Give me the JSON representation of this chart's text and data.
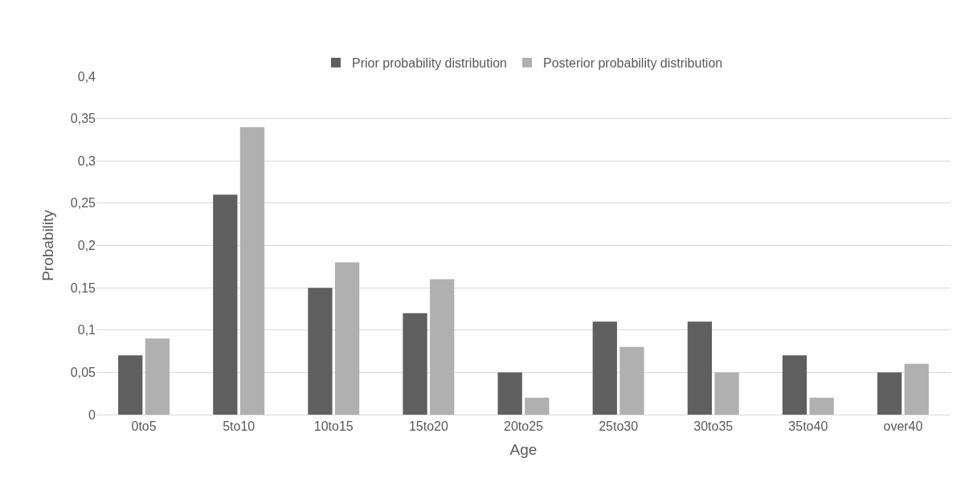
{
  "chart_data": {
    "type": "bar",
    "xlabel": "Age",
    "ylabel": "Probability",
    "categories": [
      "0to5",
      "5to10",
      "10to15",
      "15to20",
      "20to25",
      "25to30",
      "30to35",
      "35to40",
      "over40"
    ],
    "series": [
      {
        "name": "Prior probability distribution",
        "color": "#5f5f5f",
        "values": [
          0.07,
          0.26,
          0.15,
          0.12,
          0.05,
          0.11,
          0.11,
          0.07,
          0.05
        ]
      },
      {
        "name": "Posterior probability distribution",
        "color": "#b0b0b0",
        "values": [
          0.09,
          0.34,
          0.18,
          0.16,
          0.02,
          0.08,
          0.05,
          0.02,
          0.06
        ]
      }
    ],
    "ylim": [
      0,
      0.4
    ],
    "yticks": [
      0,
      {
        "value": 0.05,
        "label": "0,05"
      },
      {
        "value": 0.1,
        "label": "0,1"
      },
      {
        "value": 0.15,
        "label": "0,15"
      },
      {
        "value": 0.2,
        "label": "0,2"
      },
      {
        "value": 0.25,
        "label": "0,25"
      },
      {
        "value": 0.3,
        "label": "0,3"
      },
      {
        "value": 0.35,
        "label": "0,35"
      },
      {
        "value": 0.4,
        "label": "0,4"
      }
    ],
    "grid": "y",
    "legend": "top"
  }
}
